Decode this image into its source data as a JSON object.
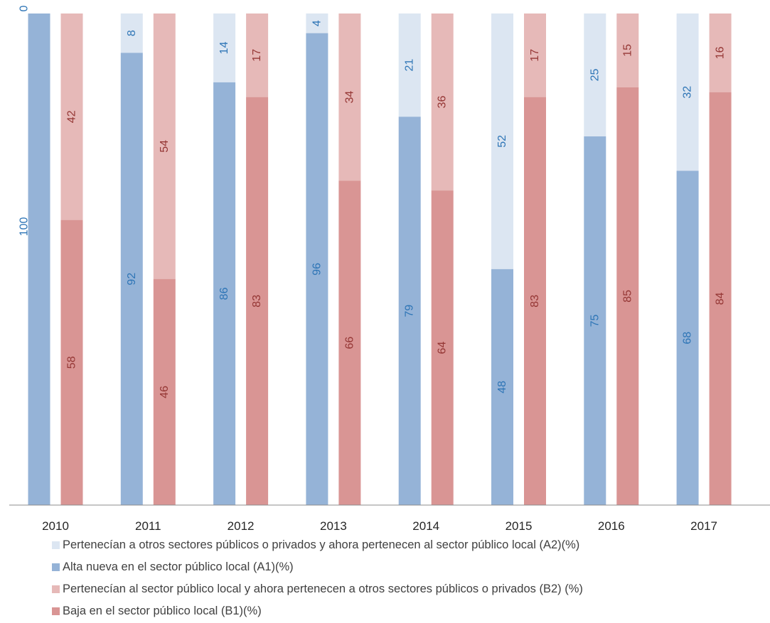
{
  "chart_data": {
    "type": "bar",
    "stacked": "two stacked bars per year (A and B), 100% stacked",
    "categories": [
      "2010",
      "2011",
      "2012",
      "2013",
      "2014",
      "2015",
      "2016",
      "2017"
    ],
    "ylim": [
      0,
      100
    ],
    "y_axis_inverted": true,
    "y_tick_labels": [
      "0",
      "100"
    ],
    "grid": false,
    "legend_position": "bottom",
    "series": [
      {
        "key": "A2",
        "name": "Pertenecían a otros sectores públicos o privados y ahora pertenecen al sector público local (A2)(%)",
        "stack": "A",
        "color": "#dce6f2",
        "label_color": "#2e75b6",
        "values": [
          null,
          8,
          14,
          4,
          21,
          52,
          25,
          32
        ],
        "labels": [
          "",
          "8",
          "14",
          "4",
          "21",
          "52",
          "25",
          "32"
        ]
      },
      {
        "key": "A1",
        "name": "Alta nueva en el sector público local (A1)(%)",
        "stack": "A",
        "color": "#95b3d7",
        "label_color": "#2e75b6",
        "values": [
          100,
          92,
          86,
          96,
          79,
          48,
          75,
          68
        ],
        "labels": [
          "",
          "92",
          "86",
          "96",
          "79",
          "48",
          "75",
          "68"
        ]
      },
      {
        "key": "B2",
        "name": "Pertenecían al sector público local y ahora pertenecen a otros sectores públicos o privados (B2) (%)",
        "stack": "B",
        "color": "#e6b9b8",
        "label_color": "#953735",
        "values": [
          42,
          54,
          17,
          34,
          36,
          17,
          15,
          16
        ],
        "labels": [
          "42",
          "54",
          "17",
          "34",
          "36",
          "17",
          "15",
          "16"
        ]
      },
      {
        "key": "B1",
        "name": "Baja en el sector público local (B1)(%)",
        "stack": "B",
        "color": "#d99594",
        "label_color": "#953735",
        "values": [
          58,
          46,
          83,
          66,
          64,
          83,
          85,
          84
        ],
        "labels": [
          "58",
          "46",
          "83",
          "66",
          "64",
          "83",
          "85",
          "84"
        ]
      }
    ],
    "legend_order": [
      "A2",
      "A1",
      "B2",
      "B1"
    ]
  }
}
